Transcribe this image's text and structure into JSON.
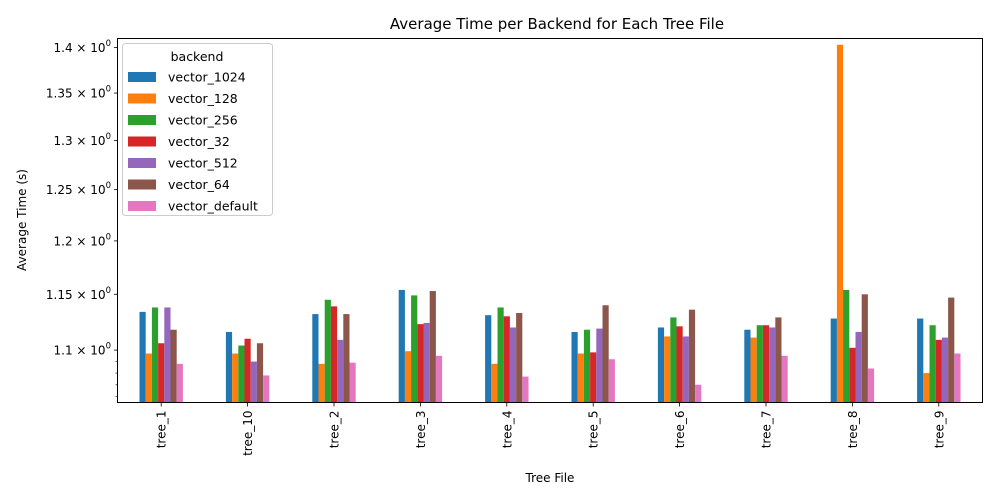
{
  "chart_data": {
    "type": "bar",
    "title": "Average Time per Backend for Each Tree File",
    "xlabel": "Tree File",
    "ylabel": "Average Time (s)",
    "yscale": "log",
    "ylim": [
      1.055,
      1.41
    ],
    "categories": [
      "tree_1",
      "tree_10",
      "tree_2",
      "tree_3",
      "tree_4",
      "tree_5",
      "tree_6",
      "tree_7",
      "tree_8",
      "tree_9"
    ],
    "y_ticks": [
      {
        "value": 1.1,
        "base": "1.1",
        "label": "1.1 × 10",
        "exp": "0"
      },
      {
        "value": 1.15,
        "base": "1.15",
        "label": "1.15 × 10",
        "exp": "0"
      },
      {
        "value": 1.2,
        "base": "1.2",
        "label": "1.2 × 10",
        "exp": "0"
      },
      {
        "value": 1.25,
        "base": "1.25",
        "label": "1.25 × 10",
        "exp": "0"
      },
      {
        "value": 1.3,
        "base": "1.3",
        "label": "1.3 × 10",
        "exp": "0"
      },
      {
        "value": 1.35,
        "base": "1.35",
        "label": "1.35 × 10",
        "exp": "0"
      },
      {
        "value": 1.4,
        "base": "1.4",
        "label": "1.4 × 10",
        "exp": "0"
      }
    ],
    "legend": {
      "title": "backend",
      "position": "top-left"
    },
    "grid": false,
    "series": [
      {
        "name": "vector_1024",
        "color": "#1f77b4",
        "values": [
          1.134,
          1.116,
          1.132,
          1.154,
          1.131,
          1.116,
          1.12,
          1.118,
          1.128,
          1.128
        ]
      },
      {
        "name": "vector_128",
        "color": "#ff7f0e",
        "values": [
          1.097,
          1.097,
          1.088,
          1.099,
          1.088,
          1.097,
          1.112,
          1.111,
          1.403,
          1.08
        ]
      },
      {
        "name": "vector_256",
        "color": "#2ca02c",
        "values": [
          1.138,
          1.104,
          1.145,
          1.149,
          1.138,
          1.118,
          1.129,
          1.122,
          1.154,
          1.122
        ]
      },
      {
        "name": "vector_32",
        "color": "#d62728",
        "values": [
          1.106,
          1.11,
          1.139,
          1.123,
          1.13,
          1.098,
          1.121,
          1.122,
          1.102,
          1.109
        ]
      },
      {
        "name": "vector_512",
        "color": "#9467bd",
        "values": [
          1.138,
          1.09,
          1.109,
          1.124,
          1.12,
          1.119,
          1.112,
          1.12,
          1.116,
          1.111
        ]
      },
      {
        "name": "vector_64",
        "color": "#8c564b",
        "values": [
          1.118,
          1.106,
          1.132,
          1.153,
          1.133,
          1.14,
          1.136,
          1.129,
          1.15,
          1.147
        ]
      },
      {
        "name": "vector_default",
        "color": "#e377c2",
        "values": [
          1.088,
          1.078,
          1.089,
          1.095,
          1.077,
          1.092,
          1.07,
          1.095,
          1.084,
          1.097
        ]
      }
    ]
  }
}
